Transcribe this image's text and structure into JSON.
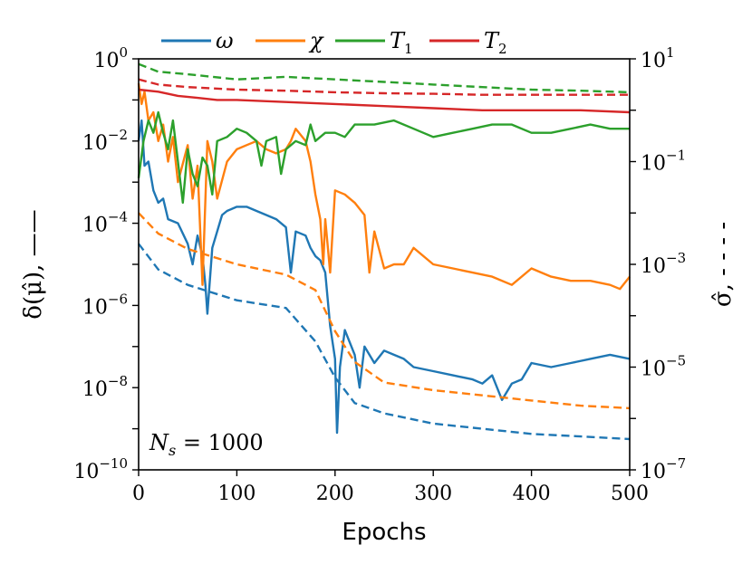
{
  "chart_data": {
    "type": "line",
    "title": "",
    "xlabel": "Epochs",
    "ylabel_left": "δ(μ̂), ——",
    "ylabel_right": "σ̂, - - - -",
    "xlim": [
      0,
      500
    ],
    "ylim_left_log10": [
      -10,
      0
    ],
    "ylim_right_log10": [
      -7,
      1
    ],
    "x_ticks": [
      0,
      100,
      200,
      300,
      400,
      500
    ],
    "x_tick_labels": [
      "0",
      "100",
      "200",
      "300",
      "400",
      "500"
    ],
    "y_left_ticks": [
      {
        "base": "10",
        "exp": "0",
        "log10": 0
      },
      {
        "base": "10",
        "exp": "−2",
        "log10": -2
      },
      {
        "base": "10",
        "exp": "−4",
        "log10": -4
      },
      {
        "base": "10",
        "exp": "−6",
        "log10": -6
      },
      {
        "base": "10",
        "exp": "−8",
        "log10": -8
      },
      {
        "base": "10",
        "exp": "−10",
        "log10": -10
      }
    ],
    "y_right_ticks": [
      {
        "base": "10",
        "exp": "1",
        "log10": 1
      },
      {
        "base": "10",
        "exp": "−1",
        "log10": -1
      },
      {
        "base": "10",
        "exp": "−3",
        "log10": -3
      },
      {
        "base": "10",
        "exp": "−5",
        "log10": -5
      },
      {
        "base": "10",
        "exp": "−7",
        "log10": -7
      }
    ],
    "annotation": {
      "var": "N",
      "sub": "s",
      "rest": " = 1000"
    },
    "legend": [
      {
        "label": "ω",
        "sub": "",
        "color": "#1f77b4"
      },
      {
        "label": "χ",
        "sub": "",
        "color": "#ff7f0e"
      },
      {
        "label": "T",
        "sub": "1",
        "color": "#2ca02c"
      },
      {
        "label": "T",
        "sub": "2",
        "color": "#d62728"
      }
    ],
    "series": [
      {
        "name": "ω δ(μ̂)",
        "color": "#1f77b4",
        "style": "solid",
        "axis": "left",
        "x": [
          0,
          3,
          6,
          10,
          15,
          20,
          25,
          30,
          40,
          50,
          55,
          60,
          65,
          68,
          70,
          75,
          80,
          85,
          90,
          100,
          110,
          120,
          130,
          140,
          150,
          155,
          160,
          170,
          175,
          180,
          185,
          190,
          195,
          200,
          202,
          205,
          210,
          220,
          225,
          230,
          240,
          250,
          260,
          270,
          280,
          300,
          320,
          340,
          350,
          360,
          370,
          380,
          390,
          400,
          420,
          440,
          460,
          480,
          500
        ],
        "y_log10": [
          -2.0,
          -1.5,
          -2.6,
          -2.5,
          -3.2,
          -3.5,
          -3.4,
          -3.9,
          -4.0,
          -4.5,
          -5.0,
          -4.3,
          -4.8,
          -5.5,
          -6.2,
          -4.6,
          -4.2,
          -3.8,
          -3.7,
          -3.6,
          -3.6,
          -3.7,
          -3.8,
          -3.9,
          -4.1,
          -5.2,
          -4.2,
          -4.3,
          -4.6,
          -4.8,
          -4.9,
          -5.2,
          -6.5,
          -7.3,
          -9.1,
          -7.5,
          -6.6,
          -7.2,
          -8.0,
          -7.0,
          -7.4,
          -7.1,
          -7.2,
          -7.3,
          -7.5,
          -7.6,
          -7.7,
          -7.8,
          -7.9,
          -7.7,
          -8.3,
          -7.9,
          -7.8,
          -7.4,
          -7.5,
          -7.4,
          -7.3,
          -7.2,
          -7.3
        ]
      },
      {
        "name": "χ δ(μ̂)",
        "color": "#ff7f0e",
        "style": "solid",
        "axis": "left",
        "x": [
          0,
          3,
          6,
          10,
          15,
          20,
          25,
          30,
          35,
          40,
          50,
          55,
          60,
          65,
          70,
          75,
          80,
          90,
          100,
          110,
          120,
          130,
          140,
          150,
          155,
          160,
          170,
          175,
          180,
          185,
          188,
          190,
          195,
          200,
          210,
          220,
          230,
          235,
          240,
          250,
          260,
          270,
          280,
          300,
          320,
          340,
          360,
          380,
          400,
          420,
          440,
          460,
          480,
          490,
          500
        ],
        "y_log10": [
          -0.6,
          -1.1,
          -0.8,
          -1.5,
          -1.3,
          -2.0,
          -1.6,
          -2.5,
          -1.9,
          -3.0,
          -2.1,
          -3.4,
          -2.6,
          -5.5,
          -2.0,
          -2.5,
          -3.4,
          -2.5,
          -2.2,
          -2.1,
          -2.0,
          -2.2,
          -2.3,
          -2.2,
          -2.0,
          -1.7,
          -2.0,
          -2.5,
          -3.3,
          -3.9,
          -5.0,
          -3.9,
          -5.2,
          -3.2,
          -3.3,
          -3.5,
          -3.8,
          -5.2,
          -4.2,
          -5.1,
          -5.0,
          -5.0,
          -4.6,
          -5.0,
          -5.1,
          -5.2,
          -5.3,
          -5.5,
          -5.1,
          -5.3,
          -5.4,
          -5.4,
          -5.5,
          -5.6,
          -5.3
        ]
      },
      {
        "name": "T1 δ(μ̂)",
        "color": "#2ca02c",
        "style": "solid",
        "axis": "left",
        "x": [
          0,
          5,
          10,
          15,
          20,
          25,
          30,
          35,
          40,
          45,
          50,
          55,
          60,
          65,
          70,
          75,
          80,
          90,
          100,
          110,
          120,
          125,
          130,
          140,
          145,
          150,
          160,
          170,
          175,
          180,
          190,
          200,
          210,
          220,
          240,
          260,
          280,
          300,
          320,
          340,
          360,
          380,
          400,
          420,
          440,
          460,
          480,
          500
        ],
        "y_log10": [
          -2.9,
          -2.0,
          -1.5,
          -1.8,
          -1.3,
          -1.8,
          -2.2,
          -1.5,
          -2.5,
          -3.5,
          -2.2,
          -2.8,
          -3.1,
          -2.4,
          -2.6,
          -3.3,
          -2.0,
          -1.9,
          -1.7,
          -1.8,
          -2.0,
          -2.6,
          -2.0,
          -1.9,
          -2.8,
          -2.2,
          -2.0,
          -2.1,
          -1.6,
          -2.0,
          -1.8,
          -1.8,
          -1.9,
          -1.6,
          -1.6,
          -1.5,
          -1.7,
          -1.9,
          -1.8,
          -1.7,
          -1.6,
          -1.6,
          -1.8,
          -1.8,
          -1.7,
          -1.6,
          -1.7,
          -1.7
        ]
      },
      {
        "name": "T2 δ(μ̂)",
        "color": "#d62728",
        "style": "solid",
        "axis": "left",
        "x": [
          0,
          20,
          40,
          60,
          80,
          100,
          150,
          200,
          250,
          300,
          350,
          400,
          450,
          500
        ],
        "y_log10": [
          -0.75,
          -0.8,
          -0.9,
          -0.95,
          -1.0,
          -1.0,
          -1.05,
          -1.1,
          -1.15,
          -1.2,
          -1.25,
          -1.25,
          -1.25,
          -1.3
        ]
      },
      {
        "name": "ω σ̂",
        "color": "#1f77b4",
        "style": "dashed",
        "axis": "right",
        "x": [
          0,
          20,
          50,
          100,
          150,
          180,
          200,
          220,
          250,
          300,
          350,
          400,
          450,
          500
        ],
        "y_log10": [
          -2.6,
          -3.1,
          -3.4,
          -3.7,
          -3.85,
          -4.5,
          -5.2,
          -5.7,
          -5.9,
          -6.1,
          -6.2,
          -6.3,
          -6.35,
          -6.4
        ]
      },
      {
        "name": "χ σ̂",
        "color": "#ff7f0e",
        "style": "dashed",
        "axis": "right",
        "x": [
          0,
          20,
          50,
          100,
          150,
          180,
          200,
          220,
          250,
          300,
          350,
          400,
          450,
          500
        ],
        "y_log10": [
          -2.0,
          -2.4,
          -2.7,
          -3.0,
          -3.2,
          -3.5,
          -4.3,
          -4.9,
          -5.3,
          -5.45,
          -5.55,
          -5.65,
          -5.75,
          -5.8
        ]
      },
      {
        "name": "T1 σ̂",
        "color": "#2ca02c",
        "style": "dashed",
        "axis": "right",
        "x": [
          0,
          20,
          50,
          100,
          150,
          200,
          250,
          300,
          350,
          400,
          450,
          500
        ],
        "y_log10": [
          0.9,
          0.75,
          0.7,
          0.6,
          0.65,
          0.6,
          0.55,
          0.5,
          0.45,
          0.4,
          0.38,
          0.35
        ]
      },
      {
        "name": "T2 σ̂",
        "color": "#d62728",
        "style": "dashed",
        "axis": "right",
        "x": [
          0,
          20,
          50,
          100,
          150,
          200,
          250,
          300,
          350,
          400,
          450,
          500
        ],
        "y_log10": [
          0.6,
          0.5,
          0.45,
          0.4,
          0.38,
          0.35,
          0.33,
          0.32,
          0.3,
          0.3,
          0.3,
          0.3
        ]
      }
    ]
  }
}
